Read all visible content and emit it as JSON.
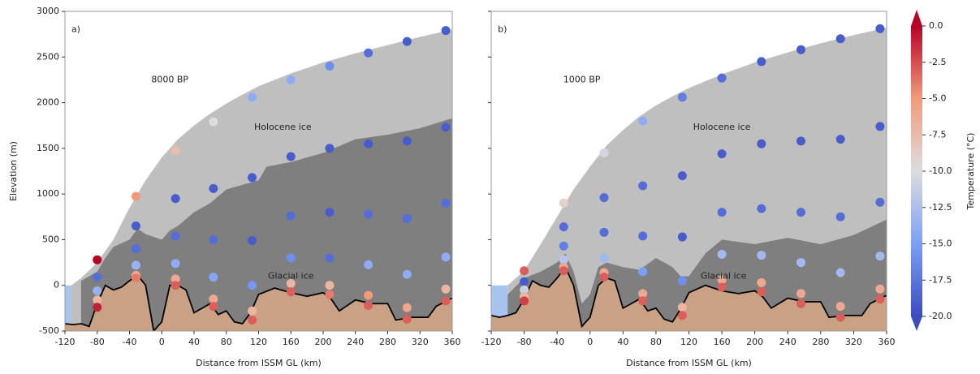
{
  "chart_data": [
    {
      "type": "scatter",
      "panel_label": "a)",
      "time_label": "8000 BP",
      "upper_region": "Holocene ice",
      "lower_region": "Glacial ice",
      "xlabel": "Distance from ISSM GL (km)",
      "ylabel": "Elevation (m)",
      "xlim": [
        -120,
        360
      ],
      "ylim": [
        -500,
        3000
      ],
      "xticks": [
        -120,
        -80,
        -40,
        0,
        40,
        80,
        120,
        160,
        200,
        240,
        280,
        320,
        360
      ],
      "yticks": [
        -500,
        0,
        500,
        1000,
        1500,
        2000,
        2500,
        3000
      ],
      "show_ytick_labels": true,
      "surface": {
        "x": [
          -112,
          -100,
          -80,
          -60,
          -40,
          -20,
          0,
          20,
          40,
          60,
          80,
          100,
          120,
          160,
          200,
          240,
          280,
          320,
          360
        ],
        "y": [
          0,
          80,
          250,
          500,
          850,
          1150,
          1400,
          1600,
          1750,
          1880,
          1990,
          2090,
          2180,
          2320,
          2440,
          2540,
          2630,
          2720,
          2800
        ]
      },
      "glacial_top": {
        "x": [
          -100,
          -80,
          -70,
          -60,
          -40,
          -30,
          -20,
          0,
          10,
          20,
          40,
          60,
          80,
          100,
          120,
          130,
          160,
          200,
          240,
          280,
          320,
          360
        ],
        "y": [
          50,
          150,
          300,
          420,
          500,
          620,
          560,
          500,
          600,
          650,
          800,
          900,
          1050,
          1100,
          1150,
          1300,
          1350,
          1450,
          1600,
          1650,
          1720,
          1830
        ]
      },
      "bed": {
        "x": [
          -120,
          -110,
          -100,
          -90,
          -80,
          -70,
          -60,
          -50,
          -40,
          -30,
          -20,
          -10,
          0,
          10,
          20,
          30,
          40,
          50,
          60,
          70,
          80,
          90,
          100,
          110,
          120,
          140,
          160,
          180,
          200,
          210,
          220,
          240,
          260,
          280,
          290,
          310,
          330,
          340,
          360
        ],
        "y": [
          -420,
          -430,
          -420,
          -450,
          -200,
          0,
          -50,
          -20,
          50,
          110,
          0,
          -500,
          -400,
          0,
          0,
          -50,
          -300,
          -250,
          -200,
          -320,
          -280,
          -400,
          -420,
          -300,
          -100,
          -30,
          -80,
          -120,
          -80,
          -150,
          -280,
          -160,
          -200,
          -200,
          -380,
          -350,
          -350,
          -230,
          -140
        ]
      },
      "points": {
        "x": [
          -80,
          -80,
          -80,
          -80,
          -80,
          -32,
          -32,
          -32,
          -32,
          -32,
          -32,
          17,
          17,
          17,
          17,
          17,
          17,
          64,
          64,
          64,
          64,
          64,
          64,
          112,
          112,
          112,
          112,
          112,
          112,
          160,
          160,
          160,
          160,
          160,
          160,
          208,
          208,
          208,
          208,
          208,
          208,
          256,
          256,
          256,
          256,
          256,
          256,
          304,
          304,
          304,
          304,
          304,
          304,
          352,
          352,
          352,
          352,
          352,
          352
        ],
        "y": [
          280,
          90,
          -60,
          -160,
          -240,
          975,
          650,
          400,
          220,
          110,
          80,
          1480,
          950,
          540,
          240,
          70,
          0,
          1790,
          1060,
          500,
          90,
          -150,
          -230,
          2060,
          1180,
          490,
          0,
          -280,
          -380,
          2250,
          1410,
          760,
          300,
          20,
          -70,
          2400,
          1500,
          800,
          300,
          0,
          -100,
          2545,
          1550,
          780,
          225,
          -110,
          -220,
          2670,
          1580,
          730,
          120,
          -245,
          -370,
          2790,
          1730,
          900,
          310,
          -40,
          -170
        ],
        "temperature": [
          0,
          -18,
          -13.5,
          -7,
          -1,
          -5,
          -19,
          -18,
          -13.5,
          -6,
          -4,
          -7.5,
          -19,
          -18,
          -14,
          -6,
          -3,
          -10,
          -19,
          -18,
          -14.5,
          -6,
          -3,
          -14,
          -19,
          -19,
          -15.5,
          -7,
          -3,
          -14,
          -19,
          -18,
          -16,
          -7,
          -3,
          -16,
          -19,
          -19,
          -18,
          -7,
          -4,
          -18,
          -19,
          -18,
          -14,
          -5,
          -3,
          -19,
          -19,
          -18,
          -14,
          -6,
          -3,
          -19,
          -19,
          -18,
          -14,
          -7,
          -3
        ]
      }
    },
    {
      "type": "scatter",
      "panel_label": "b)",
      "time_label": "1000 BP",
      "upper_region": "Holocene ice",
      "lower_region": "Glacial ice",
      "xlabel": "Distance from ISSM GL (km)",
      "xlim": [
        -120,
        360
      ],
      "ylim": [
        -500,
        3000
      ],
      "xticks": [
        -120,
        -80,
        -40,
        0,
        40,
        80,
        120,
        160,
        200,
        240,
        280,
        320,
        360
      ],
      "yticks": [
        -500,
        0,
        500,
        1000,
        1500,
        2000,
        2500,
        3000
      ],
      "show_ytick_labels": false,
      "surface": {
        "x": [
          -100,
          -80,
          -60,
          -40,
          -20,
          0,
          20,
          40,
          60,
          80,
          100,
          120,
          160,
          200,
          240,
          280,
          320,
          360
        ],
        "y": [
          0,
          160,
          450,
          750,
          1050,
          1300,
          1530,
          1700,
          1850,
          1970,
          2070,
          2160,
          2310,
          2440,
          2550,
          2650,
          2740,
          2820
        ]
      },
      "glacial_top": {
        "x": [
          -100,
          -80,
          -60,
          -40,
          -30,
          -20,
          -10,
          0,
          10,
          20,
          40,
          60,
          80,
          100,
          110,
          120,
          140,
          160,
          200,
          240,
          280,
          320,
          360
        ],
        "y": [
          -100,
          80,
          150,
          250,
          350,
          150,
          -200,
          -100,
          200,
          250,
          200,
          170,
          300,
          200,
          100,
          100,
          350,
          500,
          450,
          520,
          450,
          550,
          720
        ]
      },
      "bed": {
        "x": [
          -120,
          -110,
          -100,
          -90,
          -80,
          -70,
          -60,
          -50,
          -40,
          -30,
          -20,
          -10,
          0,
          10,
          20,
          30,
          40,
          50,
          60,
          70,
          80,
          90,
          100,
          110,
          120,
          140,
          160,
          180,
          200,
          210,
          220,
          240,
          260,
          280,
          290,
          310,
          330,
          340,
          360
        ],
        "y": [
          -330,
          -350,
          -330,
          -300,
          -150,
          50,
          0,
          -20,
          80,
          200,
          0,
          -450,
          -350,
          0,
          80,
          50,
          -250,
          -200,
          -150,
          -280,
          -250,
          -370,
          -400,
          -260,
          -80,
          0,
          -60,
          -90,
          -60,
          -130,
          -250,
          -140,
          -180,
          -180,
          -350,
          -330,
          -330,
          -200,
          -110
        ]
      },
      "points": {
        "x": [
          -80,
          -80,
          -80,
          -80,
          -80,
          -32,
          -32,
          -32,
          -32,
          -32,
          -32,
          17,
          17,
          17,
          17,
          17,
          17,
          64,
          64,
          64,
          64,
          64,
          64,
          112,
          112,
          112,
          112,
          112,
          112,
          160,
          160,
          160,
          160,
          160,
          160,
          208,
          208,
          208,
          208,
          208,
          208,
          256,
          256,
          256,
          256,
          256,
          256,
          304,
          304,
          304,
          304,
          304,
          304,
          352,
          352,
          352,
          352,
          352,
          352
        ],
        "y": [
          160,
          40,
          -50,
          -120,
          -170,
          900,
          640,
          430,
          280,
          200,
          160,
          1450,
          960,
          580,
          300,
          140,
          90,
          1800,
          1090,
          540,
          150,
          -90,
          -170,
          2060,
          1200,
          530,
          50,
          -240,
          -330,
          2270,
          1440,
          800,
          340,
          60,
          -20,
          2450,
          1550,
          840,
          330,
          30,
          -70,
          2580,
          1580,
          800,
          250,
          -90,
          -200,
          2700,
          1600,
          750,
          140,
          -230,
          -350,
          2810,
          1740,
          910,
          320,
          -40,
          -150
        ],
        "temperature": [
          -3,
          -19,
          -11,
          -7,
          -2,
          -9,
          -18,
          -17,
          -12,
          -6,
          -3,
          -10.5,
          -18,
          -18,
          -13,
          -6,
          -3,
          -14,
          -18,
          -18,
          -15,
          -6,
          -3,
          -17,
          -19,
          -19,
          -16,
          -7,
          -3,
          -18,
          -19,
          -18,
          -13,
          -6,
          -3,
          -19,
          -19,
          -18,
          -13,
          -6,
          -3,
          -19,
          -19,
          -18,
          -13,
          -6,
          -3,
          -19,
          -19,
          -18,
          -13,
          -6,
          -3,
          -19,
          -19,
          -18,
          -13,
          -6,
          -3
        ]
      }
    }
  ],
  "colorbar": {
    "label": "Temperature (°C)",
    "colormap": "coolwarm",
    "lim": [
      -20,
      0
    ],
    "ticks": [
      {
        "value": 0,
        "label": "0.0"
      },
      -2.5,
      {
        "value": -5,
        "label": "-5.0"
      },
      -7.5,
      {
        "value": -10,
        "label": "-10.0"
      },
      -12.5,
      {
        "value": -15,
        "label": "-15.0"
      },
      -17.5,
      {
        "value": -20,
        "label": "-20.0"
      }
    ]
  }
}
